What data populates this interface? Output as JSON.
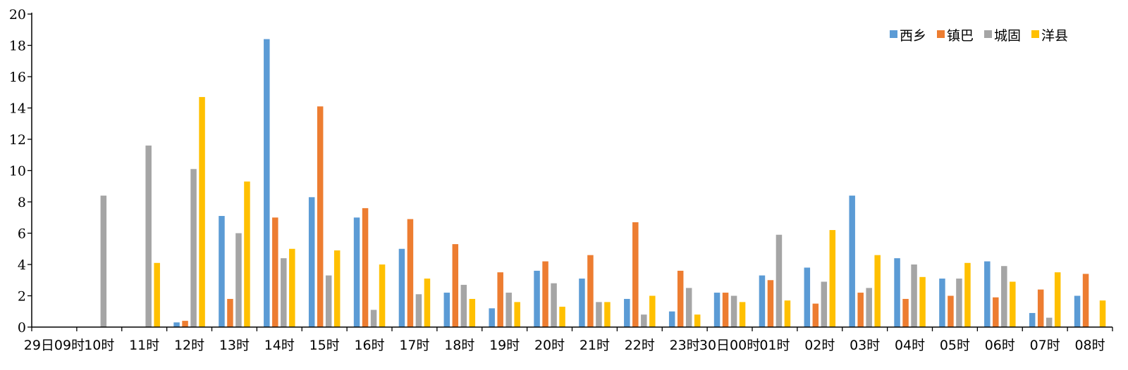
{
  "chart_data": {
    "type": "bar",
    "title": "",
    "xlabel": "",
    "ylabel": "",
    "ylim": [
      0,
      20
    ],
    "yticks": [
      "0",
      "2",
      "4",
      "6",
      "8",
      "10",
      "12",
      "14",
      "16",
      "18",
      "20"
    ],
    "grid": false,
    "legend_position": "top-right",
    "categories": [
      "29日09时",
      "10时",
      "11时",
      "12时",
      "13时",
      "14时",
      "15时",
      "16时",
      "17时",
      "18时",
      "19时",
      "20时",
      "21时",
      "22时",
      "23时",
      "30日00时",
      "01时",
      "02时",
      "03时",
      "04时",
      "05时",
      "06时",
      "07时",
      "08时"
    ],
    "series": [
      {
        "name": "西乡",
        "color": "#5B9BD5",
        "values": [
          0,
          0,
          0,
          0.3,
          7.1,
          18.4,
          8.3,
          7.0,
          5.0,
          2.2,
          1.2,
          3.6,
          3.1,
          1.8,
          1.0,
          2.2,
          3.3,
          3.8,
          8.4,
          4.4,
          3.1,
          4.2,
          0.9,
          2.0
        ]
      },
      {
        "name": "镇巴",
        "color": "#ED7D31",
        "values": [
          0,
          0,
          0,
          0.4,
          1.8,
          7.0,
          14.1,
          7.6,
          6.9,
          5.3,
          3.5,
          4.2,
          4.6,
          6.7,
          3.6,
          2.2,
          3.0,
          1.5,
          2.2,
          1.8,
          2.0,
          1.9,
          2.4,
          3.4
        ]
      },
      {
        "name": "城固",
        "color": "#A5A5A5",
        "values": [
          0,
          8.4,
          11.6,
          10.1,
          6.0,
          4.4,
          3.3,
          1.1,
          2.1,
          2.7,
          2.2,
          2.8,
          1.6,
          0.8,
          2.5,
          2.0,
          5.9,
          2.9,
          2.5,
          4.0,
          3.1,
          3.9,
          0.6,
          0
        ]
      },
      {
        "name": "洋县",
        "color": "#FFC000",
        "values": [
          0,
          0,
          4.1,
          14.7,
          9.3,
          5.0,
          4.9,
          4.0,
          3.1,
          1.8,
          1.6,
          1.3,
          1.6,
          2.0,
          0.8,
          1.6,
          1.7,
          6.2,
          4.6,
          3.2,
          4.1,
          2.9,
          3.5,
          1.7
        ]
      }
    ]
  }
}
